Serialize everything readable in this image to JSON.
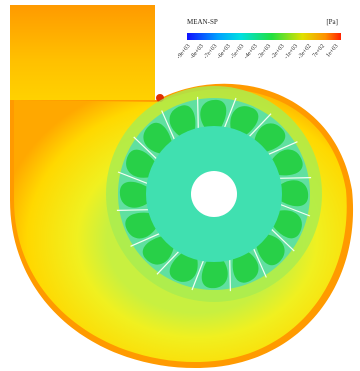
{
  "legend": {
    "title": "MEAN-SP",
    "unit": "[Pa]",
    "ticks": [
      "-9e+03",
      "-8e+03",
      "-7e+03",
      "-6e+03",
      "-5e+03",
      "-4e+03",
      "-3e+03",
      "-2e+03",
      "-1e+03",
      "-3e+02",
      "7e+02",
      "1e+03"
    ]
  }
}
